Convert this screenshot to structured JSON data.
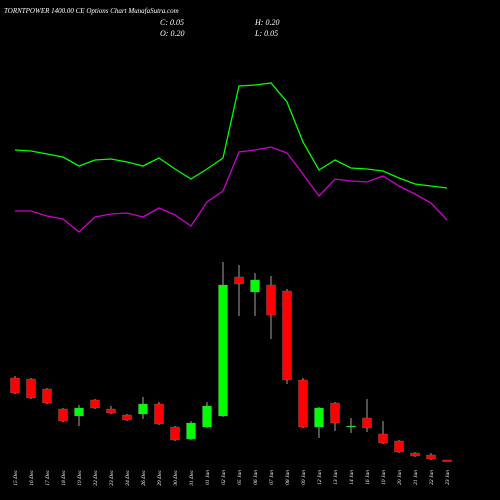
{
  "chart_data": {
    "type": "candlestick",
    "title": "TORNTPOWER 1400.00 CE Options Chart MunafaSutra.com",
    "ohlc_labels": {
      "close": "C: 0.05",
      "high": "H: 0.20",
      "open": "O: 0.20",
      "low": "L: 0.05"
    },
    "categories": [
      "15 Dec",
      "16 Dec",
      "17 Dec",
      "18 Dec",
      "19 Dec",
      "22 Dec",
      "23 Dec",
      "24 Dec",
      "26 Dec",
      "29 Dec",
      "30 Dec",
      "31 Dec",
      "01 Jan",
      "02 Jan",
      "05 Jan",
      "06 Jan",
      "07 Jan",
      "08 Jan",
      "09 Jan",
      "12 Jan",
      "13 Jan",
      "14 Jan",
      "16 Jan",
      "19 Jan",
      "20 Jan",
      "21 Jan",
      "22 Jan",
      "23 Jan"
    ],
    "open": [
      8.4,
      8.3,
      7.3,
      5.3,
      4.6,
      6.2,
      5.3,
      4.7,
      4.8,
      5.8,
      3.5,
      2.3,
      3.5,
      4.6,
      18.5,
      17.0,
      17.7,
      17.1,
      8.2,
      3.5,
      5.9,
      3.5,
      4.4,
      2.8,
      2.1,
      0.9,
      0.7,
      0.2
    ],
    "high": [
      8.6,
      8.4,
      7.4,
      5.4,
      5.7,
      6.3,
      5.6,
      4.8,
      6.5,
      6.0,
      3.6,
      4.1,
      6.0,
      20.0,
      19.7,
      18.9,
      18.6,
      17.3,
      8.4,
      5.5,
      6.0,
      4.4,
      6.3,
      4.1,
      2.2,
      1.0,
      0.9,
      0.2
    ],
    "low": [
      6.8,
      6.3,
      5.8,
      4.0,
      3.6,
      5.3,
      4.8,
      4.1,
      4.3,
      3.7,
      2.1,
      2.2,
      3.4,
      4.5,
      14.6,
      14.6,
      12.3,
      7.8,
      3.4,
      2.4,
      3.1,
      2.9,
      3.0,
      1.8,
      0.9,
      0.5,
      0.2,
      0.05
    ],
    "close": [
      6.9,
      6.4,
      5.9,
      4.1,
      5.4,
      5.4,
      4.9,
      4.2,
      5.8,
      3.8,
      2.2,
      3.9,
      5.6,
      17.7,
      17.8,
      18.2,
      14.7,
      8.2,
      3.5,
      5.4,
      3.9,
      3.6,
      3.4,
      1.9,
      1.0,
      0.6,
      0.3,
      0.05
    ],
    "up_color": "#00ff00",
    "down_color": "#ff0000",
    "ylim": [
      0,
      22
    ],
    "lines": [
      {
        "color": "#00ff00",
        "axis": "y2",
        "values": [
          100,
          99,
          96,
          93,
          84,
          90,
          91,
          88,
          84,
          92,
          81,
          71,
          81,
          92,
          164,
          165,
          167,
          148,
          108,
          80,
          90,
          82,
          81,
          79,
          72,
          66,
          64,
          62
        ]
      },
      {
        "color": "#cc00cc",
        "axis": "y2",
        "values": [
          39,
          39,
          34,
          31,
          18,
          33,
          36,
          37,
          33,
          42,
          35,
          24,
          48,
          59,
          98,
          100,
          103,
          97,
          76,
          54,
          71,
          69,
          68,
          74,
          64,
          56,
          47,
          30
        ]
      }
    ],
    "y2lim": [
      0,
      200
    ]
  }
}
